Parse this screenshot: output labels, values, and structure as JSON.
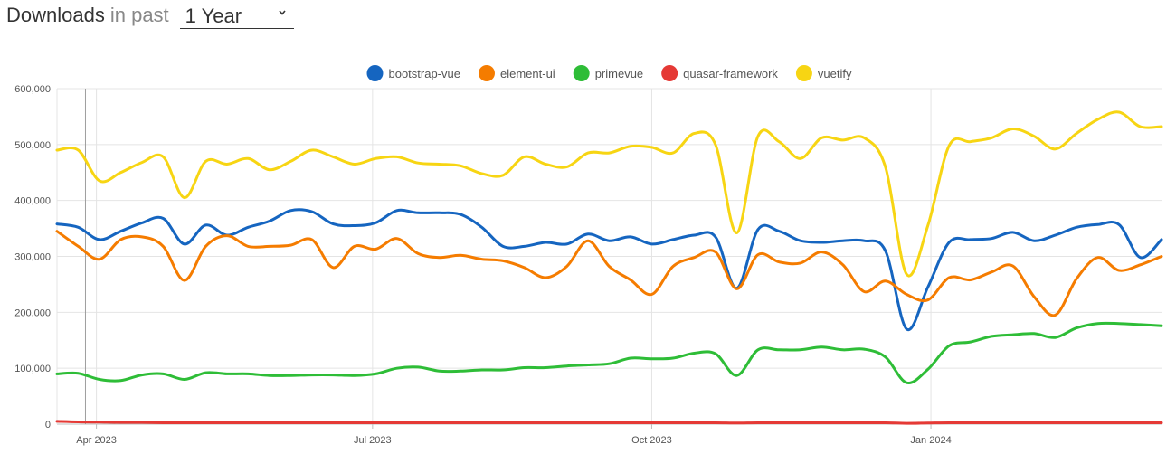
{
  "header": {
    "title": "Downloads",
    "subtitle": "in past",
    "period": "1 Year",
    "period_icon": "chevron-down-icon"
  },
  "chart_data": {
    "type": "line",
    "title": "",
    "xlabel": "",
    "ylabel": "",
    "ylim": [
      0,
      600000
    ],
    "yticks": [
      0,
      100000,
      200000,
      300000,
      400000,
      500000,
      600000
    ],
    "ytick_labels": [
      "0",
      "100,000",
      "200,000",
      "300,000",
      "400,000",
      "500,000",
      "600,000"
    ],
    "xtick_labels": [
      "Apr 2023",
      "Jul 2023",
      "Oct 2023",
      "Jan 2024"
    ],
    "xtick_dates": [
      "2023-04-01",
      "2023-07-01",
      "2023-10-01",
      "2024-01-01"
    ],
    "x_start": "2023-03-19",
    "x_end": "2024-03-17",
    "grid": true,
    "legend_position": "top-center",
    "x": [
      "2023-03-19",
      "2023-03-26",
      "2023-04-02",
      "2023-04-09",
      "2023-04-16",
      "2023-04-23",
      "2023-04-30",
      "2023-05-07",
      "2023-05-14",
      "2023-05-21",
      "2023-05-28",
      "2023-06-04",
      "2023-06-11",
      "2023-06-18",
      "2023-06-25",
      "2023-07-02",
      "2023-07-09",
      "2023-07-16",
      "2023-07-23",
      "2023-07-30",
      "2023-08-06",
      "2023-08-13",
      "2023-08-20",
      "2023-08-27",
      "2023-09-03",
      "2023-09-10",
      "2023-09-17",
      "2023-09-24",
      "2023-10-01",
      "2023-10-08",
      "2023-10-15",
      "2023-10-22",
      "2023-10-29",
      "2023-11-05",
      "2023-11-12",
      "2023-11-19",
      "2023-11-26",
      "2023-12-03",
      "2023-12-10",
      "2023-12-17",
      "2023-12-24",
      "2023-12-31",
      "2024-01-07",
      "2024-01-14",
      "2024-01-21",
      "2024-01-28",
      "2024-02-04",
      "2024-02-11",
      "2024-02-18",
      "2024-02-25",
      "2024-03-03",
      "2024-03-10",
      "2024-03-17"
    ],
    "series": [
      {
        "name": "bootstrap-vue",
        "color": "#1565C0",
        "values": [
          358000,
          352000,
          330000,
          345000,
          360000,
          368000,
          322000,
          356000,
          338000,
          352000,
          363000,
          382000,
          380000,
          358000,
          355000,
          360000,
          382000,
          378000,
          378000,
          375000,
          352000,
          318000,
          318000,
          325000,
          322000,
          340000,
          328000,
          335000,
          322000,
          330000,
          338000,
          335000,
          243000,
          348000,
          345000,
          328000,
          325000,
          328000,
          328000,
          310000,
          170000,
          245000,
          325000,
          330000,
          332000,
          343000,
          328000,
          338000,
          352000,
          357000,
          357000,
          298000,
          330000
        ]
      },
      {
        "name": "element-ui",
        "color": "#F57C00",
        "values": [
          345000,
          318000,
          295000,
          330000,
          335000,
          318000,
          257000,
          318000,
          337000,
          318000,
          318000,
          320000,
          330000,
          280000,
          318000,
          313000,
          332000,
          305000,
          298000,
          302000,
          295000,
          292000,
          280000,
          262000,
          282000,
          328000,
          282000,
          258000,
          232000,
          282000,
          298000,
          308000,
          242000,
          303000,
          290000,
          288000,
          308000,
          285000,
          237000,
          256000,
          232000,
          222000,
          262000,
          258000,
          272000,
          283000,
          228000,
          195000,
          260000,
          298000,
          275000,
          285000,
          300000
        ]
      },
      {
        "name": "primevue",
        "color": "#2EBD37",
        "values": [
          90000,
          91000,
          80000,
          78000,
          88000,
          90000,
          80000,
          92000,
          90000,
          90000,
          87000,
          87000,
          88000,
          88000,
          87000,
          90000,
          100000,
          102000,
          95000,
          95000,
          97000,
          97000,
          101000,
          101000,
          104000,
          106000,
          108000,
          118000,
          117000,
          118000,
          127000,
          126000,
          87000,
          133000,
          133000,
          133000,
          138000,
          133000,
          134000,
          120000,
          74000,
          98000,
          140000,
          147000,
          157000,
          160000,
          162000,
          155000,
          172000,
          180000,
          180000,
          178000,
          176000
        ]
      },
      {
        "name": "quasar-framework",
        "color": "#E53935",
        "values": [
          5000,
          4000,
          3500,
          3000,
          3000,
          2500,
          2500,
          2500,
          2500,
          2500,
          2500,
          2500,
          2500,
          2500,
          2500,
          2500,
          2500,
          2500,
          2500,
          2500,
          2500,
          2500,
          2500,
          2500,
          2500,
          2500,
          2500,
          2500,
          2500,
          2500,
          2500,
          2500,
          2000,
          2500,
          2500,
          2500,
          2500,
          2500,
          2500,
          2500,
          1500,
          2000,
          2500,
          2500,
          2500,
          2500,
          2500,
          2500,
          2500,
          2500,
          2500,
          2500,
          2500
        ]
      },
      {
        "name": "vuetify",
        "color": "#F7D513",
        "values": [
          490000,
          490000,
          435000,
          450000,
          468000,
          478000,
          405000,
          470000,
          465000,
          475000,
          455000,
          470000,
          490000,
          478000,
          465000,
          475000,
          478000,
          467000,
          465000,
          462000,
          448000,
          445000,
          478000,
          465000,
          460000,
          485000,
          485000,
          497000,
          495000,
          485000,
          520000,
          500000,
          342000,
          515000,
          505000,
          475000,
          512000,
          508000,
          512000,
          460000,
          268000,
          355000,
          498000,
          505000,
          512000,
          528000,
          515000,
          492000,
          520000,
          545000,
          558000,
          532000,
          532000
        ]
      }
    ]
  }
}
